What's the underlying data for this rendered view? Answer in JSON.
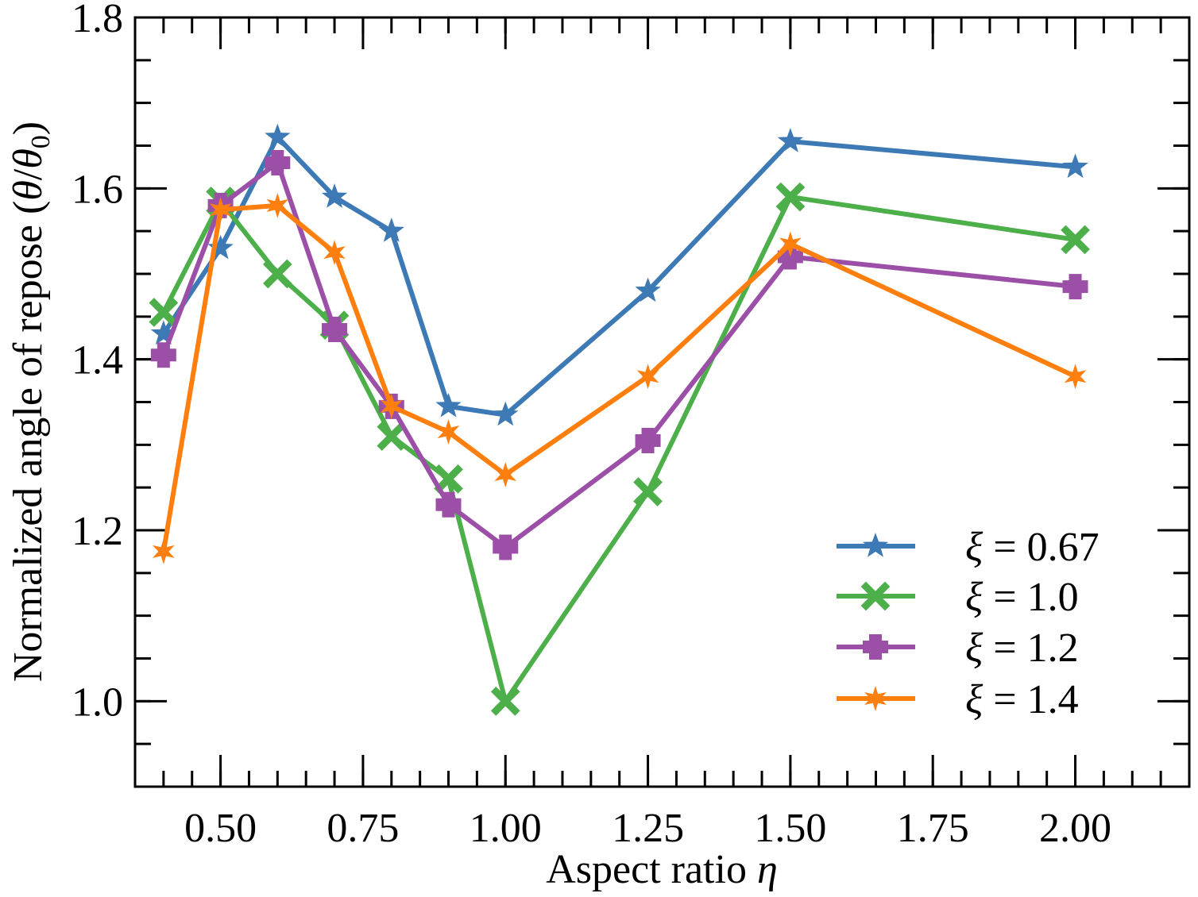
{
  "chart_data": {
    "type": "line",
    "xlabel_text": "Aspect ratio ",
    "xlabel_symbol": "η",
    "ylabel_text": "Normalized angle of repose (",
    "ylabel_theta": "θ",
    "ylabel_slash": "/",
    "ylabel_sub": "0",
    "ylabel_close": ")",
    "xlim": [
      0.35,
      2.2
    ],
    "ylim": [
      0.9,
      1.8
    ],
    "xticks": [
      {
        "value": 0.5,
        "label": "0.50"
      },
      {
        "value": 0.75,
        "label": "0.75"
      },
      {
        "value": 1.0,
        "label": "1.00"
      },
      {
        "value": 1.25,
        "label": "1.25"
      },
      {
        "value": 1.5,
        "label": "1.50"
      },
      {
        "value": 1.75,
        "label": "1.75"
      },
      {
        "value": 2.0,
        "label": "2.00"
      }
    ],
    "yticks": [
      {
        "value": 1.0,
        "label": "1.0"
      },
      {
        "value": 1.2,
        "label": "1.2"
      },
      {
        "value": 1.4,
        "label": "1.4"
      },
      {
        "value": 1.6,
        "label": "1.6"
      },
      {
        "value": 1.8,
        "label": "1.8"
      }
    ],
    "x_minor_step": 0.05,
    "y_minor_step": 0.05,
    "legend_placement": "bottom-right",
    "series": [
      {
        "name": "ξ = 0.67",
        "color": "#3d7ab5",
        "marker": "star",
        "x": [
          0.4,
          0.5,
          0.6,
          0.7,
          0.8,
          0.9,
          1.0,
          1.25,
          1.5,
          2.0
        ],
        "y": [
          1.43,
          1.53,
          1.66,
          1.59,
          1.55,
          1.345,
          1.335,
          1.48,
          1.655,
          1.625
        ]
      },
      {
        "name": "ξ = 1.0",
        "color": "#4daf4a",
        "marker": "x",
        "x": [
          0.4,
          0.5,
          0.6,
          0.7,
          0.8,
          0.9,
          1.0,
          1.25,
          1.5,
          2.0
        ],
        "y": [
          1.455,
          1.585,
          1.5,
          1.44,
          1.31,
          1.26,
          1.0,
          1.245,
          1.59,
          1.54
        ]
      },
      {
        "name": "ξ = 1.2",
        "color": "#9b4fa6",
        "marker": "plus",
        "x": [
          0.4,
          0.5,
          0.6,
          0.7,
          0.8,
          0.9,
          1.0,
          1.25,
          1.5,
          2.0
        ],
        "y": [
          1.405,
          1.58,
          1.63,
          1.435,
          1.345,
          1.23,
          1.18,
          1.305,
          1.52,
          1.485
        ]
      },
      {
        "name": "ξ = 1.4",
        "color": "#ff7f0e",
        "marker": "star6",
        "x": [
          0.4,
          0.5,
          0.6,
          0.7,
          0.8,
          0.9,
          1.0,
          1.25,
          1.5,
          2.0
        ],
        "y": [
          1.175,
          1.575,
          1.58,
          1.525,
          1.345,
          1.315,
          1.265,
          1.38,
          1.535,
          1.38
        ]
      }
    ]
  }
}
